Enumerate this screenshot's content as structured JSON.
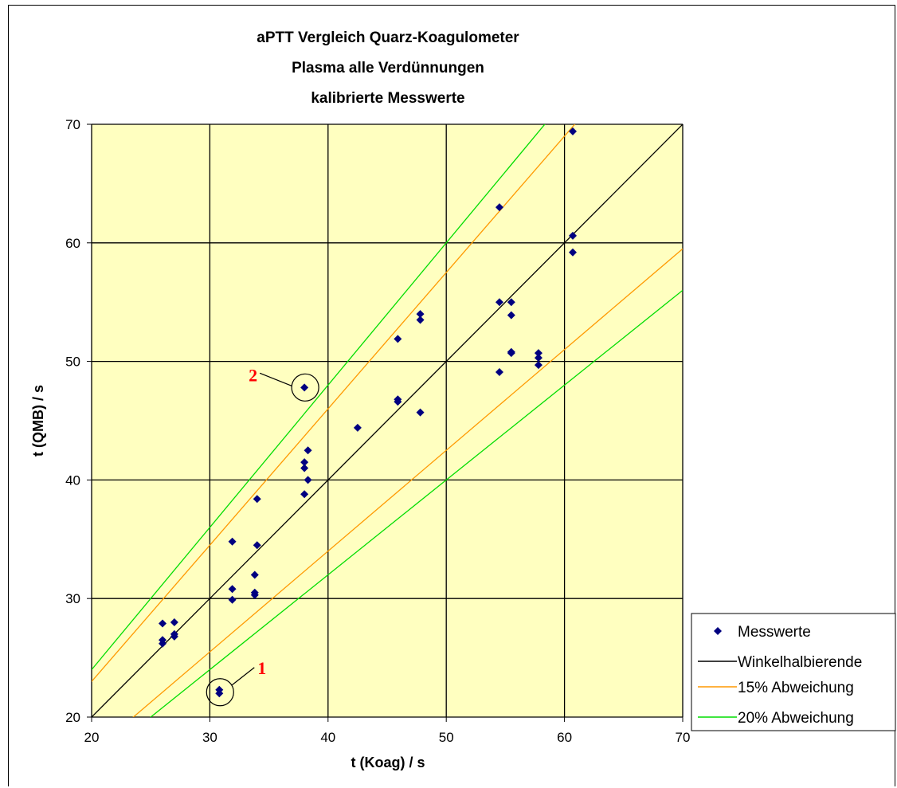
{
  "chart_data": {
    "type": "scatter",
    "title_lines": [
      "aPTT Vergleich Quarz-Koagulometer",
      "Plasma alle Verdünnungen",
      "kalibrierte Messwerte"
    ],
    "xlabel": "t (Koag) / s",
    "ylabel": "t (QMB) / s",
    "xlim": [
      20,
      70
    ],
    "ylim": [
      20,
      70
    ],
    "x_ticks": [
      "20",
      "30",
      "40",
      "50",
      "60",
      "70"
    ],
    "y_ticks": [
      "20",
      "30",
      "40",
      "50",
      "60",
      "70"
    ],
    "grid": true,
    "background": "#ffffc0",
    "legend_position": "right",
    "series": [
      {
        "name": "Messwerte",
        "kind": "points",
        "marker": "diamond",
        "color": "#000080",
        "points": [
          [
            26.0,
            27.9
          ],
          [
            26.0,
            26.5
          ],
          [
            26.0,
            26.2
          ],
          [
            27.0,
            28.0
          ],
          [
            27.0,
            27.0
          ],
          [
            27.0,
            26.8
          ],
          [
            31.9,
            34.8
          ],
          [
            31.9,
            30.8
          ],
          [
            31.9,
            29.9
          ],
          [
            33.8,
            32.0
          ],
          [
            33.8,
            30.5
          ],
          [
            33.8,
            30.3
          ],
          [
            34.0,
            38.4
          ],
          [
            34.0,
            34.5
          ],
          [
            30.8,
            22.3
          ],
          [
            30.8,
            22.0
          ],
          [
            38.0,
            47.8
          ],
          [
            38.0,
            41.5
          ],
          [
            38.0,
            41.0
          ],
          [
            38.0,
            38.8
          ],
          [
            38.3,
            42.5
          ],
          [
            38.3,
            40.0
          ],
          [
            42.5,
            44.4
          ],
          [
            45.9,
            51.9
          ],
          [
            45.9,
            46.8
          ],
          [
            45.9,
            46.6
          ],
          [
            47.8,
            54.0
          ],
          [
            47.8,
            53.5
          ],
          [
            47.8,
            45.7
          ],
          [
            54.5,
            63.0
          ],
          [
            54.5,
            55.0
          ],
          [
            54.5,
            49.1
          ],
          [
            55.5,
            55.0
          ],
          [
            55.5,
            53.9
          ],
          [
            55.5,
            50.8
          ],
          [
            55.5,
            50.7
          ],
          [
            57.8,
            50.7
          ],
          [
            57.8,
            50.3
          ],
          [
            57.8,
            49.7
          ],
          [
            60.7,
            69.4
          ],
          [
            60.7,
            60.6
          ],
          [
            60.7,
            59.2
          ]
        ]
      },
      {
        "name": "Winkelhalbierende",
        "kind": "line",
        "color": "#000000",
        "factor": 1.0
      },
      {
        "name": "15% Abweichung",
        "kind": "band",
        "color": "#ff9900",
        "factors": [
          1.15,
          0.85
        ]
      },
      {
        "name": "20% Abweichung",
        "kind": "band",
        "color": "#00dd00",
        "factors": [
          1.2,
          0.8
        ]
      }
    ],
    "annotations": [
      {
        "label": "1",
        "x": 30.8,
        "y": 22.1
      },
      {
        "label": "2",
        "x": 38.0,
        "y": 47.8
      }
    ]
  }
}
